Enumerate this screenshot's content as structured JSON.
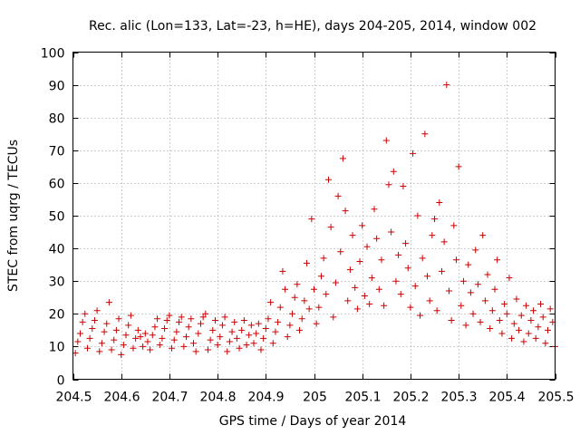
{
  "chart_data": {
    "type": "scatter",
    "title": "Rec. alic (Lon=133, Lat=-23, h=HE), days 204-205, 2014, window 002",
    "xlabel": "GPS time / Days of year 2014",
    "ylabel": "STEC from uqrg / TECUs",
    "xlim": [
      204.5,
      205.5
    ],
    "ylim": [
      0,
      100
    ],
    "xticks": [
      204.5,
      204.6,
      204.7,
      204.8,
      204.9,
      205,
      205.1,
      205.2,
      205.3,
      205.4,
      205.5
    ],
    "xtick_labels": [
      "204.5",
      "204.6",
      "204.7",
      "204.8",
      "204.9",
      "205",
      "205.1",
      "205.2",
      "205.3",
      "205.4",
      "205.5"
    ],
    "yticks": [
      0,
      10,
      20,
      30,
      40,
      50,
      60,
      70,
      80,
      90,
      100
    ],
    "ytick_labels": [
      "0",
      "10",
      "20",
      "30",
      "40",
      "50",
      "60",
      "70",
      "80",
      "90",
      "100"
    ],
    "grid": true,
    "marker": "+",
    "color": "#cc0000",
    "series": [
      {
        "name": "STEC",
        "points": [
          [
            204.505,
            8.0
          ],
          [
            204.51,
            11.5
          ],
          [
            204.515,
            14.0
          ],
          [
            204.52,
            17.5
          ],
          [
            204.525,
            20.0
          ],
          [
            204.53,
            9.5
          ],
          [
            204.535,
            12.5
          ],
          [
            204.54,
            15.5
          ],
          [
            204.545,
            18.0
          ],
          [
            204.55,
            21.0
          ],
          [
            204.555,
            8.5
          ],
          [
            204.56,
            11.0
          ],
          [
            204.565,
            14.5
          ],
          [
            204.57,
            17.0
          ],
          [
            204.575,
            23.5
          ],
          [
            204.58,
            9.0
          ],
          [
            204.585,
            12.0
          ],
          [
            204.59,
            15.0
          ],
          [
            204.595,
            18.5
          ],
          [
            204.6,
            7.5
          ],
          [
            204.605,
            10.5
          ],
          [
            204.61,
            13.5
          ],
          [
            204.615,
            16.5
          ],
          [
            204.62,
            19.5
          ],
          [
            204.625,
            9.5
          ],
          [
            204.63,
            12.5
          ],
          [
            204.635,
            15.0
          ],
          [
            204.64,
            13.0
          ],
          [
            204.645,
            10.0
          ],
          [
            204.65,
            14.0
          ],
          [
            204.655,
            11.5
          ],
          [
            204.66,
            9.0
          ],
          [
            204.665,
            13.5
          ],
          [
            204.67,
            16.0
          ],
          [
            204.675,
            18.5
          ],
          [
            204.68,
            10.5
          ],
          [
            204.685,
            12.5
          ],
          [
            204.69,
            15.5
          ],
          [
            204.695,
            18.0
          ],
          [
            204.7,
            19.5
          ],
          [
            204.705,
            9.5
          ],
          [
            204.71,
            12.0
          ],
          [
            204.715,
            14.5
          ],
          [
            204.72,
            17.5
          ],
          [
            204.725,
            19.0
          ],
          [
            204.73,
            10.0
          ],
          [
            204.735,
            13.0
          ],
          [
            204.74,
            16.0
          ],
          [
            204.745,
            18.5
          ],
          [
            204.75,
            11.0
          ],
          [
            204.755,
            8.5
          ],
          [
            204.76,
            14.0
          ],
          [
            204.765,
            17.0
          ],
          [
            204.77,
            19.0
          ],
          [
            204.775,
            20.0
          ],
          [
            204.78,
            9.0
          ],
          [
            204.785,
            12.0
          ],
          [
            204.79,
            15.0
          ],
          [
            204.795,
            18.0
          ],
          [
            204.8,
            10.5
          ],
          [
            204.805,
            13.0
          ],
          [
            204.81,
            16.5
          ],
          [
            204.815,
            19.0
          ],
          [
            204.82,
            8.5
          ],
          [
            204.825,
            11.5
          ],
          [
            204.83,
            14.5
          ],
          [
            204.835,
            17.5
          ],
          [
            204.84,
            12.5
          ],
          [
            204.845,
            9.5
          ],
          [
            204.85,
            15.0
          ],
          [
            204.855,
            18.0
          ],
          [
            204.86,
            10.5
          ],
          [
            204.865,
            13.5
          ],
          [
            204.87,
            16.5
          ],
          [
            204.875,
            11.0
          ],
          [
            204.88,
            14.0
          ],
          [
            204.885,
            17.0
          ],
          [
            204.89,
            9.0
          ],
          [
            204.895,
            12.5
          ],
          [
            204.9,
            15.5
          ],
          [
            204.905,
            18.5
          ],
          [
            204.91,
            23.5
          ],
          [
            204.915,
            11.0
          ],
          [
            204.92,
            14.5
          ],
          [
            204.925,
            17.5
          ],
          [
            204.93,
            22.0
          ],
          [
            204.935,
            33.0
          ],
          [
            204.94,
            27.5
          ],
          [
            204.945,
            13.0
          ],
          [
            204.95,
            16.5
          ],
          [
            204.955,
            20.0
          ],
          [
            204.96,
            25.0
          ],
          [
            204.965,
            29.0
          ],
          [
            204.97,
            15.0
          ],
          [
            204.975,
            18.5
          ],
          [
            204.98,
            24.0
          ],
          [
            204.985,
            35.5
          ],
          [
            204.99,
            21.5
          ],
          [
            204.995,
            49.0
          ],
          [
            205.0,
            27.5
          ],
          [
            205.005,
            17.0
          ],
          [
            205.01,
            22.0
          ],
          [
            205.015,
            31.5
          ],
          [
            205.02,
            37.0
          ],
          [
            205.025,
            26.0
          ],
          [
            205.03,
            61.0
          ],
          [
            205.035,
            46.5
          ],
          [
            205.04,
            19.0
          ],
          [
            205.045,
            29.5
          ],
          [
            205.05,
            56.0
          ],
          [
            205.055,
            39.0
          ],
          [
            205.06,
            67.5
          ],
          [
            205.065,
            51.5
          ],
          [
            205.07,
            24.0
          ],
          [
            205.075,
            33.5
          ],
          [
            205.08,
            44.0
          ],
          [
            205.085,
            28.0
          ],
          [
            205.09,
            21.5
          ],
          [
            205.095,
            36.0
          ],
          [
            205.1,
            47.0
          ],
          [
            205.105,
            25.5
          ],
          [
            205.11,
            40.5
          ],
          [
            205.115,
            23.0
          ],
          [
            205.12,
            31.0
          ],
          [
            205.125,
            52.0
          ],
          [
            205.13,
            43.0
          ],
          [
            205.135,
            27.5
          ],
          [
            205.14,
            36.5
          ],
          [
            205.145,
            22.5
          ],
          [
            205.15,
            73.0
          ],
          [
            205.155,
            59.5
          ],
          [
            205.16,
            45.0
          ],
          [
            205.165,
            63.5
          ],
          [
            205.17,
            30.0
          ],
          [
            205.175,
            38.0
          ],
          [
            205.18,
            26.0
          ],
          [
            205.185,
            59.0
          ],
          [
            205.19,
            41.5
          ],
          [
            205.195,
            34.0
          ],
          [
            205.2,
            22.0
          ],
          [
            205.205,
            69.0
          ],
          [
            205.21,
            28.5
          ],
          [
            205.215,
            50.0
          ],
          [
            205.22,
            19.5
          ],
          [
            205.225,
            37.0
          ],
          [
            205.23,
            75.0
          ],
          [
            205.235,
            31.5
          ],
          [
            205.24,
            24.0
          ],
          [
            205.245,
            44.0
          ],
          [
            205.25,
            49.0
          ],
          [
            205.255,
            21.0
          ],
          [
            205.26,
            54.0
          ],
          [
            205.265,
            33.0
          ],
          [
            205.27,
            42.0
          ],
          [
            205.275,
            90.0
          ],
          [
            205.28,
            27.0
          ],
          [
            205.285,
            18.0
          ],
          [
            205.29,
            47.0
          ],
          [
            205.295,
            36.5
          ],
          [
            205.3,
            65.0
          ],
          [
            205.305,
            22.5
          ],
          [
            205.31,
            30.0
          ],
          [
            205.315,
            16.5
          ],
          [
            205.32,
            35.0
          ],
          [
            205.325,
            26.5
          ],
          [
            205.33,
            20.0
          ],
          [
            205.335,
            39.5
          ],
          [
            205.34,
            29.0
          ],
          [
            205.345,
            17.5
          ],
          [
            205.35,
            44.0
          ],
          [
            205.355,
            24.0
          ],
          [
            205.36,
            32.0
          ],
          [
            205.365,
            15.5
          ],
          [
            205.37,
            21.0
          ],
          [
            205.375,
            27.5
          ],
          [
            205.38,
            36.5
          ],
          [
            205.385,
            18.0
          ],
          [
            205.39,
            14.0
          ],
          [
            205.395,
            23.0
          ],
          [
            205.4,
            20.0
          ],
          [
            205.405,
            31.0
          ],
          [
            205.41,
            12.5
          ],
          [
            205.415,
            17.0
          ],
          [
            205.42,
            24.5
          ],
          [
            205.425,
            15.0
          ],
          [
            205.43,
            19.5
          ],
          [
            205.435,
            11.5
          ],
          [
            205.44,
            22.5
          ],
          [
            205.445,
            14.0
          ],
          [
            205.45,
            18.0
          ],
          [
            205.455,
            21.0
          ],
          [
            205.46,
            12.5
          ],
          [
            205.465,
            16.0
          ],
          [
            205.47,
            23.0
          ],
          [
            205.475,
            19.0
          ],
          [
            205.48,
            11.0
          ],
          [
            205.485,
            15.0
          ],
          [
            205.49,
            21.5
          ],
          [
            205.495,
            17.5
          ],
          [
            205.5,
            10.0
          ]
        ]
      }
    ]
  }
}
